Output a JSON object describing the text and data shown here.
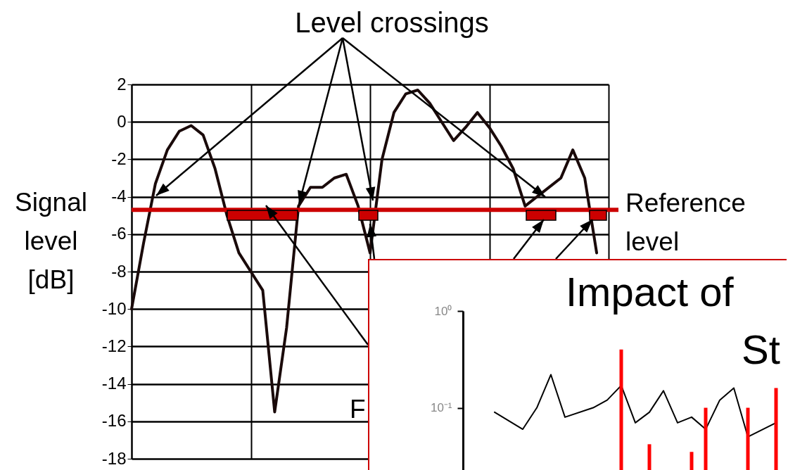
{
  "chart_data": [
    {
      "type": "line",
      "title": "Level crossings",
      "ylabel": "Signal level [dB]",
      "categories": [
        null,
        null,
        null,
        null,
        null,
        null,
        null,
        null,
        null,
        null,
        null,
        null,
        null,
        null,
        null,
        null,
        null,
        null,
        null,
        null,
        null,
        null,
        null,
        null,
        null,
        null,
        null,
        null,
        null,
        null,
        null,
        null,
        null,
        null,
        null,
        null,
        null,
        null,
        null,
        null,
        null
      ],
      "series": [
        {
          "color": "#1a0a0a",
          "values": [
            -10,
            -6.5,
            -3.3,
            -1.5,
            -0.5,
            -0.2,
            -0.7,
            -2.5,
            -5,
            -7,
            -8,
            -9,
            -15.5,
            -11,
            -4.5,
            -3.5,
            -3.5,
            -3,
            -2.8,
            -4.5,
            -7,
            -2,
            0.5,
            1.5,
            1.7,
            1,
            0,
            -1,
            -0.3,
            0.5,
            -0.3,
            -1.3,
            -2.5,
            -4.5,
            null,
            null,
            -3,
            -1.5,
            -3,
            -7,
            null
          ]
        }
      ],
      "ylim": [
        -18,
        2
      ],
      "yticks": [
        -18,
        -16,
        -14,
        -12,
        -10,
        -8,
        -6,
        -4,
        -2,
        0,
        2
      ],
      "grid": true,
      "tick_labels": "y",
      "line_style": "solid",
      "ref_lines": [
        {
          "axis": "y",
          "value": -4.7,
          "label": "Reference level",
          "color": "#cc0000"
        }
      ],
      "annotations": [
        "F"
      ]
    },
    {
      "type": "line",
      "title": "Impact of",
      "subtitle": "St",
      "categories": [
        null,
        null,
        null,
        null,
        null,
        null,
        null,
        null,
        null,
        null,
        null,
        null,
        null,
        null,
        null,
        null,
        null,
        null,
        null,
        null,
        null,
        null,
        null,
        null
      ],
      "series": [
        {
          "color": "#000000",
          "values": [
            null,
            null,
            0.09,
            null,
            0.06,
            0.1,
            0.22,
            0.08,
            null,
            0.1,
            0.12,
            0.17,
            0.07,
            0.09,
            0.15,
            0.07,
            0.08,
            0.06,
            0.12,
            0.16,
            0.05,
            null,
            0.07,
            null
          ]
        },
        {
          "type": "bar",
          "color": "#ff0000",
          "values": [
            null,
            null,
            null,
            null,
            null,
            null,
            null,
            null,
            null,
            null,
            null,
            0.4,
            null,
            0.042,
            null,
            null,
            0.035,
            0.1,
            null,
            null,
            0.1,
            null,
            0.16,
            null
          ]
        }
      ],
      "log": true,
      "ylim": [
        0.022,
        1
      ],
      "yticks": [
        {
          "value": 0.1,
          "label": "10⁻¹"
        },
        {
          "value": 1,
          "label": "10⁰"
        }
      ],
      "tick_labels": "y"
    }
  ]
}
